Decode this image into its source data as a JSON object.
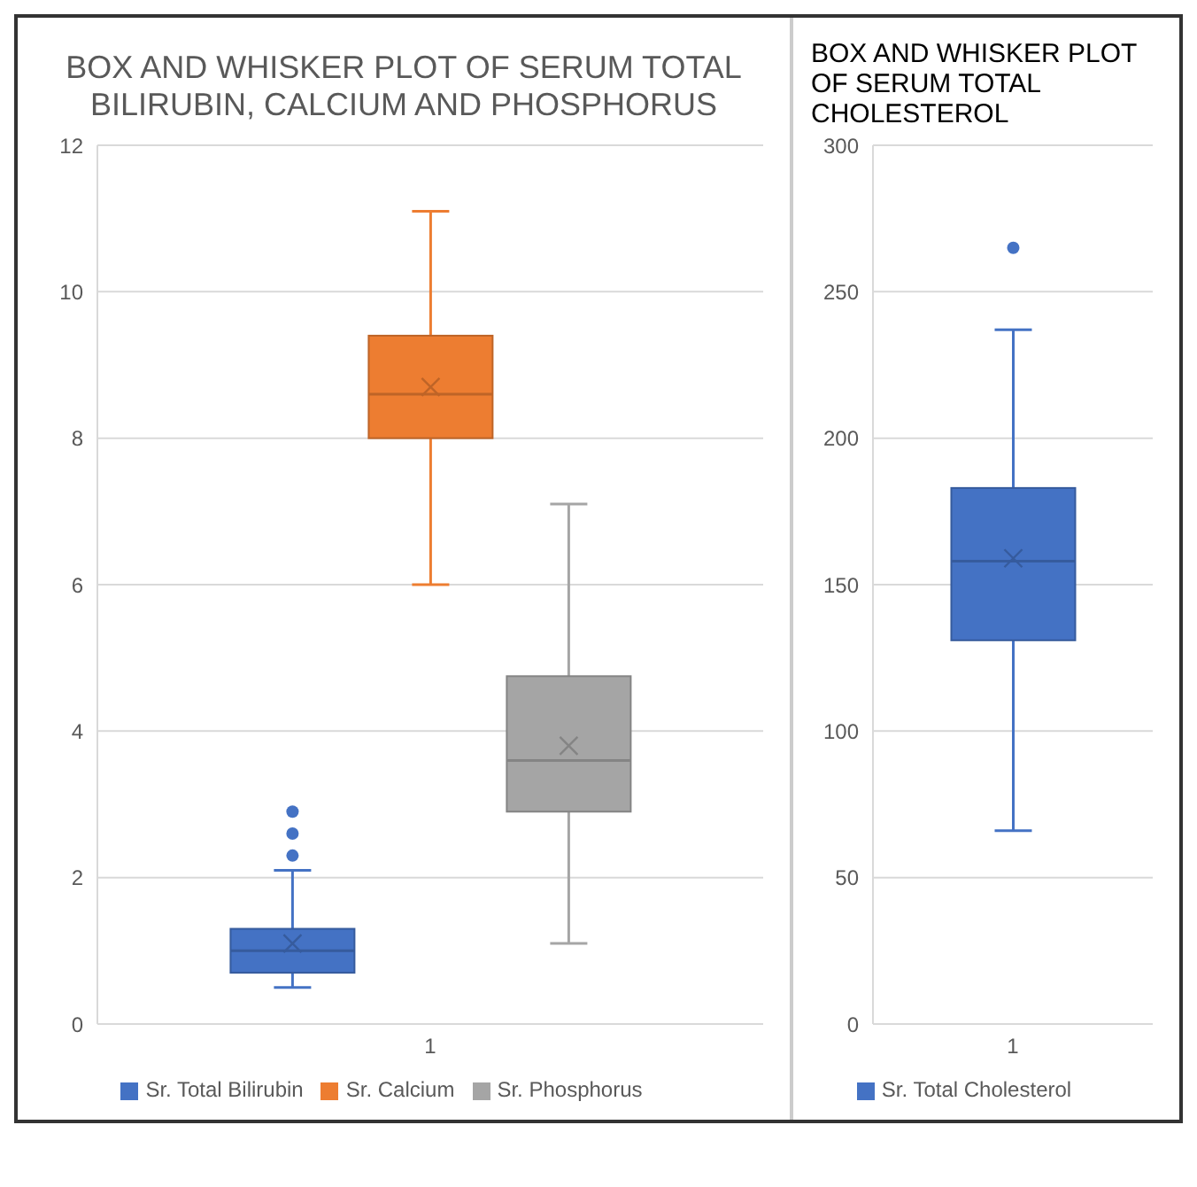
{
  "chart_data": [
    {
      "type": "box",
      "title": "BOX AND WHISKER PLOT OF SERUM TOTAL BILIRUBIN, CALCIUM AND PHOSPHORUS",
      "categories": [
        "1"
      ],
      "ylim": [
        0,
        12
      ],
      "yticks": [
        0,
        2,
        4,
        6,
        8,
        10,
        12
      ],
      "grid": "y",
      "legend": "bottom",
      "series": [
        {
          "name": "Sr. Total Bilirubin",
          "color": "#4472c4",
          "boxes": [
            {
              "low": 0.5,
              "q1": 0.7,
              "median": 1.0,
              "q3": 1.3,
              "high": 2.1,
              "mean": 1.1,
              "outliers": [
                2.3,
                2.6,
                2.9
              ]
            }
          ]
        },
        {
          "name": "Sr. Calcium",
          "color": "#ed7d31",
          "boxes": [
            {
              "low": 6.0,
              "q1": 8.0,
              "median": 8.6,
              "q3": 9.4,
              "high": 11.1,
              "mean": 8.7
            }
          ]
        },
        {
          "name": "Sr. Phosphorus",
          "color": "#a5a5a5",
          "boxes": [
            {
              "low": 1.1,
              "q1": 2.9,
              "median": 3.6,
              "q3": 4.75,
              "high": 7.1,
              "mean": 3.8
            }
          ]
        }
      ]
    },
    {
      "type": "box",
      "title": "BOX AND WHISKER PLOT OF SERUM TOTAL CHOLESTEROL",
      "categories": [
        "1"
      ],
      "ylim": [
        0,
        300
      ],
      "yticks": [
        0,
        50,
        100,
        150,
        200,
        250,
        300
      ],
      "grid": "y",
      "legend": "bottom",
      "series": [
        {
          "name": "Sr. Total Cholesterol",
          "color": "#4472c4",
          "boxes": [
            {
              "low": 66,
              "q1": 131,
              "median": 158,
              "q3": 183,
              "high": 237,
              "mean": 159,
              "outliers": [
                265
              ]
            }
          ]
        }
      ]
    }
  ]
}
